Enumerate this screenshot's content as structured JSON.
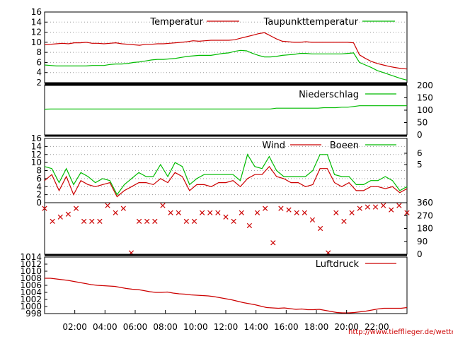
{
  "colors": {
    "red": "#cc0000",
    "green": "#00bb00",
    "frame": "#000000",
    "grid": "#9a9a9a"
  },
  "credit": "http://www.tiefflieger.de/wetter/",
  "chart_data": [
    {
      "type": "line",
      "id": "temp",
      "ylim": [
        2,
        16
      ],
      "yticks": [
        "2",
        "4",
        "6",
        "8",
        "10",
        "12",
        "14",
        "16"
      ],
      "grid": true,
      "legend_position": "top",
      "series": [
        {
          "name": "Temperatur",
          "color": "#cc0000",
          "values": [
            9.5,
            9.6,
            9.7,
            9.8,
            9.7,
            9.9,
            9.9,
            10.0,
            9.8,
            9.8,
            9.7,
            9.8,
            9.9,
            9.7,
            9.6,
            9.5,
            9.4,
            9.6,
            9.6,
            9.7,
            9.7,
            9.8,
            9.9,
            10.0,
            10.1,
            10.3,
            10.2,
            10.3,
            10.4,
            10.4,
            10.4,
            10.4,
            10.5,
            10.8,
            11.1,
            11.4,
            11.7,
            11.9,
            11.3,
            10.7,
            10.2,
            10.1,
            10.0,
            10.0,
            10.1,
            10.0,
            10.0,
            10.0,
            10.0,
            10.0,
            10.0,
            10.0,
            9.9,
            7.5,
            6.8,
            6.2,
            5.8,
            5.5,
            5.2,
            5.0,
            4.8,
            4.7
          ]
        },
        {
          "name": "Taupunkttemperatur",
          "color": "#00bb00",
          "values": [
            5.5,
            5.4,
            5.3,
            5.3,
            5.3,
            5.3,
            5.3,
            5.3,
            5.4,
            5.4,
            5.4,
            5.6,
            5.7,
            5.7,
            5.8,
            6.0,
            6.1,
            6.3,
            6.5,
            6.6,
            6.6,
            6.7,
            6.8,
            7.0,
            7.2,
            7.3,
            7.4,
            7.4,
            7.4,
            7.6,
            7.8,
            7.9,
            8.2,
            8.4,
            8.3,
            7.8,
            7.4,
            7.1,
            7.1,
            7.2,
            7.4,
            7.5,
            7.6,
            7.8,
            7.8,
            7.7,
            7.7,
            7.7,
            7.7,
            7.7,
            7.7,
            7.8,
            7.9,
            6.0,
            5.5,
            5.0,
            4.4,
            4.0,
            3.6,
            3.2,
            2.8,
            2.5
          ]
        }
      ]
    },
    {
      "type": "line",
      "id": "rain",
      "ylim": [
        0,
        200
      ],
      "yticks": [
        "0",
        "50",
        "100",
        "150",
        "200"
      ],
      "grid": false,
      "legend_position": "top-right",
      "series": [
        {
          "name": "Niederschlag",
          "color": "#00bb00",
          "values": [
            104,
            105,
            105,
            105,
            105,
            105,
            105,
            105,
            105,
            105,
            105,
            105,
            105,
            105,
            105,
            105,
            105,
            105,
            105,
            105,
            105,
            105,
            105,
            105,
            105,
            105,
            105,
            105,
            105,
            105,
            105,
            105,
            105,
            105,
            105,
            105,
            105,
            105,
            105,
            108,
            108,
            108,
            108,
            108,
            108,
            108,
            108,
            110,
            110,
            110,
            112,
            112,
            115,
            118,
            118,
            118,
            118,
            118,
            118,
            118,
            118,
            118
          ]
        }
      ]
    },
    {
      "type": "line",
      "id": "wind",
      "ylim": [
        0,
        16
      ],
      "yticks": [
        "0",
        "2",
        "4",
        "6",
        "8",
        "10",
        "12",
        "14",
        "16"
      ],
      "yticks_right": [
        "5",
        "6"
      ],
      "grid": true,
      "legend_position": "top-center",
      "series": [
        {
          "name": "Wind",
          "color": "#cc0000",
          "values": [
            5.5,
            7.0,
            3.0,
            6.5,
            2.0,
            5.5,
            4.5,
            4.0,
            4.5,
            5.0,
            1.5,
            3.0,
            4.0,
            5.0,
            5.0,
            4.5,
            6.0,
            5.0,
            7.5,
            6.5,
            3.0,
            4.5,
            4.5,
            4.0,
            5.0,
            5.0,
            5.5,
            4.0,
            6.0,
            7.0,
            7.0,
            9.0,
            6.5,
            6.0,
            5.0,
            5.0,
            4.0,
            4.5,
            8.5,
            8.5,
            5.0,
            4.0,
            5.0,
            3.0,
            3.0,
            4.0,
            4.0,
            3.5,
            4.0,
            2.5,
            3.5
          ]
        },
        {
          "name": "Boeen",
          "color": "#00bb00",
          "values": [
            9.0,
            8.5,
            5.0,
            8.5,
            4.5,
            7.5,
            6.5,
            5.0,
            6.0,
            5.5,
            2.0,
            4.5,
            6.0,
            7.5,
            6.5,
            6.5,
            9.5,
            6.5,
            10.0,
            9.0,
            4.5,
            6.0,
            7.0,
            7.0,
            7.0,
            7.0,
            7.0,
            5.5,
            12.0,
            9.0,
            8.5,
            11.5,
            8.0,
            6.5,
            6.5,
            6.5,
            6.5,
            8.0,
            12.0,
            12.0,
            7.0,
            6.5,
            6.5,
            4.5,
            4.5,
            5.5,
            5.5,
            6.5,
            5.5,
            3.0,
            4.0
          ]
        }
      ]
    },
    {
      "type": "scatter",
      "id": "winddir",
      "ylim": [
        0,
        360
      ],
      "yticks": [
        "0",
        "90",
        "180",
        "270",
        "360"
      ],
      "marker": "x",
      "series": [
        {
          "name": "",
          "color": "#cc0000",
          "values": [
            320,
            230,
            260,
            280,
            320,
            230,
            230,
            230,
            340,
            290,
            320,
            10,
            230,
            230,
            230,
            340,
            290,
            290,
            230,
            230,
            290,
            290,
            290,
            260,
            230,
            290,
            200,
            290,
            320,
            80,
            320,
            310,
            290,
            290,
            240,
            180,
            10,
            290,
            230,
            290,
            320,
            330,
            330,
            340,
            310,
            340,
            290
          ]
        }
      ]
    },
    {
      "type": "line",
      "id": "pressure",
      "ylim": [
        998,
        1014
      ],
      "yticks": [
        "998",
        "1000",
        "1002",
        "1004",
        "1006",
        "1008",
        "1010",
        "1012",
        "1014"
      ],
      "grid": false,
      "legend_position": "top-right",
      "xticks": [
        "02:00",
        "04:00",
        "06:00",
        "08:00",
        "10:00",
        "12:00",
        "14:00",
        "16:00",
        "18:00",
        "20:00",
        "22:00"
      ],
      "series": [
        {
          "name": "Luftdruck",
          "color": "#cc0000",
          "values": [
            1008.0,
            1008.0,
            1007.8,
            1007.6,
            1007.4,
            1007.1,
            1006.8,
            1006.5,
            1006.2,
            1006.0,
            1005.9,
            1005.8,
            1005.7,
            1005.4,
            1005.1,
            1004.9,
            1004.8,
            1004.5,
            1004.2,
            1004.0,
            1004.0,
            1004.1,
            1003.8,
            1003.6,
            1003.5,
            1003.3,
            1003.2,
            1003.1,
            1003.0,
            1002.8,
            1002.5,
            1002.2,
            1001.9,
            1001.5,
            1001.1,
            1000.8,
            1000.5,
            1000.1,
            999.7,
            999.6,
            999.5,
            999.6,
            999.4,
            999.2,
            999.3,
            999.1,
            999.1,
            999.2,
            998.9,
            998.6,
            998.3,
            998.2,
            998.2,
            998.3,
            998.5,
            998.7,
            999.0,
            999.3,
            999.5,
            999.5,
            999.5,
            999.5,
            999.7
          ]
        }
      ]
    }
  ]
}
